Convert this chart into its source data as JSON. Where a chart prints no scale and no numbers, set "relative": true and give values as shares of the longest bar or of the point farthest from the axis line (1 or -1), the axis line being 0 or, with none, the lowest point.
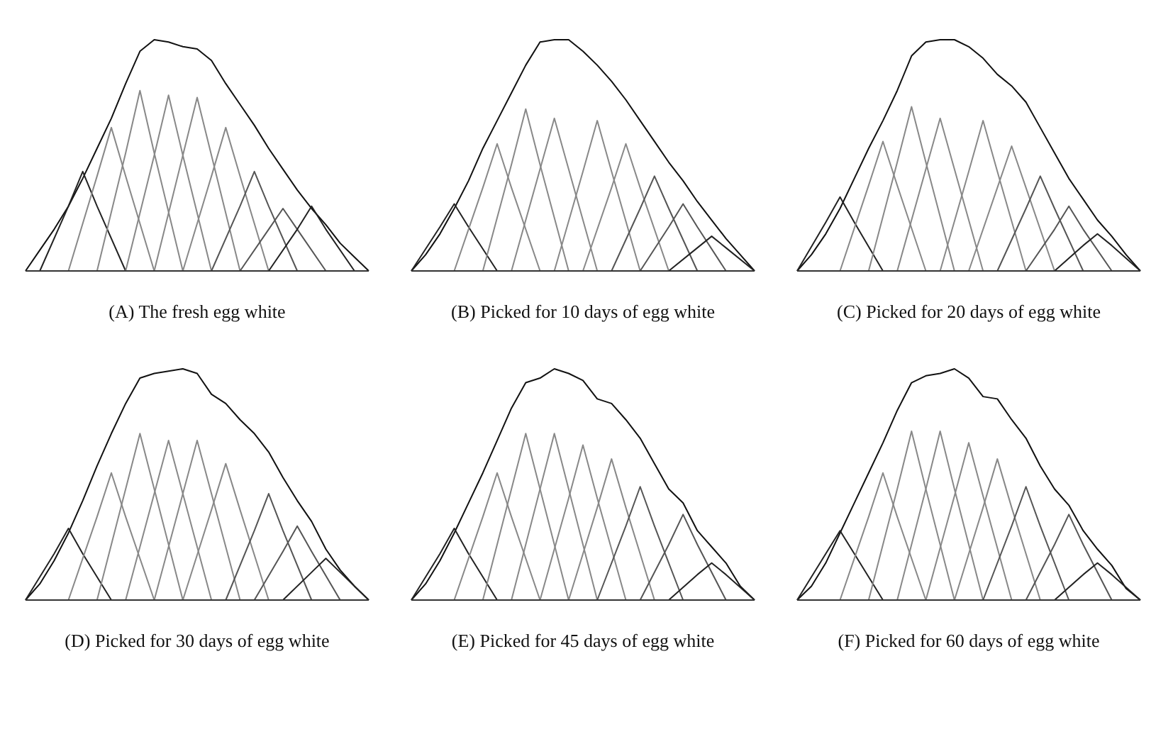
{
  "chart_data": [
    {
      "type": "line",
      "title": "(A) The fresh egg white",
      "relative": true,
      "marker": "none",
      "line_style": "solid",
      "legend": false,
      "categories": [
        null,
        null,
        null,
        null,
        null,
        null,
        null,
        null,
        null,
        null,
        null,
        null,
        null,
        null,
        null,
        null,
        null,
        null,
        null,
        null,
        null,
        null,
        null,
        null,
        null
      ],
      "series": [
        {
          "color": "#111111",
          "values": [
            0,
            0.09,
            0.18,
            0.28,
            0.4,
            0.53,
            0.66,
            0.81,
            0.95,
            1.0,
            0.99,
            0.97,
            0.96,
            0.91,
            0.81,
            0.72,
            0.63,
            0.53,
            0.44,
            0.35,
            0.27,
            0.2,
            0.12,
            0.06,
            0
          ]
        },
        {
          "color": "#222222",
          "values": [
            null,
            0,
            null,
            0.28,
            0.43,
            0.28,
            null,
            0,
            null,
            null,
            null,
            null,
            null,
            null,
            null,
            null,
            null,
            null,
            null,
            null,
            null,
            null,
            null,
            null,
            null
          ]
        },
        {
          "color": "#888888",
          "values": [
            null,
            null,
            null,
            0,
            null,
            0.41,
            0.62,
            0.41,
            null,
            0,
            null,
            null,
            null,
            null,
            null,
            null,
            null,
            null,
            null,
            null,
            null,
            null,
            null,
            null,
            null
          ]
        },
        {
          "color": "#888888",
          "values": [
            null,
            null,
            null,
            null,
            null,
            0,
            null,
            0.51,
            0.78,
            0.51,
            null,
            0,
            null,
            null,
            null,
            null,
            null,
            null,
            null,
            null,
            null,
            null,
            null,
            null,
            null
          ]
        },
        {
          "color": "#888888",
          "values": [
            null,
            null,
            null,
            null,
            null,
            null,
            null,
            0,
            null,
            0.5,
            0.76,
            0.5,
            null,
            0,
            null,
            null,
            null,
            null,
            null,
            null,
            null,
            null,
            null,
            null,
            null
          ]
        },
        {
          "color": "#888888",
          "values": [
            null,
            null,
            null,
            null,
            null,
            null,
            null,
            null,
            null,
            0,
            null,
            0.5,
            0.75,
            0.5,
            null,
            0,
            null,
            null,
            null,
            null,
            null,
            null,
            null,
            null,
            null
          ]
        },
        {
          "color": "#888888",
          "values": [
            null,
            null,
            null,
            null,
            null,
            null,
            null,
            null,
            null,
            null,
            null,
            0,
            null,
            0.41,
            0.62,
            0.41,
            null,
            0,
            null,
            null,
            null,
            null,
            null,
            null,
            null
          ]
        },
        {
          "color": "#555555",
          "values": [
            null,
            null,
            null,
            null,
            null,
            null,
            null,
            null,
            null,
            null,
            null,
            null,
            null,
            0,
            null,
            0.28,
            0.43,
            0.28,
            null,
            0,
            null,
            null,
            null,
            null,
            null
          ]
        },
        {
          "color": "#555555",
          "values": [
            null,
            null,
            null,
            null,
            null,
            null,
            null,
            null,
            null,
            null,
            null,
            null,
            null,
            null,
            null,
            0,
            null,
            0.18,
            0.27,
            0.18,
            null,
            0,
            null,
            null,
            null
          ]
        },
        {
          "color": "#222222",
          "values": [
            null,
            null,
            null,
            null,
            null,
            null,
            null,
            null,
            null,
            null,
            null,
            null,
            null,
            null,
            null,
            null,
            null,
            0,
            null,
            0.18,
            0.28,
            0.18,
            null,
            0,
            null
          ]
        }
      ]
    },
    {
      "type": "line",
      "title": "(B) Picked for 10 days of egg white",
      "relative": true,
      "marker": "none",
      "line_style": "solid",
      "legend": false,
      "categories": [
        null,
        null,
        null,
        null,
        null,
        null,
        null,
        null,
        null,
        null,
        null,
        null,
        null,
        null,
        null,
        null,
        null,
        null,
        null,
        null,
        null,
        null,
        null,
        null,
        null
      ],
      "series": [
        {
          "color": "#111111",
          "values": [
            0,
            0.07,
            0.16,
            0.27,
            0.39,
            0.53,
            0.65,
            0.77,
            0.89,
            0.99,
            1.0,
            1.0,
            0.95,
            0.89,
            0.82,
            0.74,
            0.65,
            0.56,
            0.47,
            0.39,
            0.3,
            0.22,
            0.14,
            0.07,
            0
          ]
        },
        {
          "color": "#222222",
          "values": [
            0,
            null,
            0.19,
            0.29,
            0.19,
            null,
            0,
            null,
            null,
            null,
            null,
            null,
            null,
            null,
            null,
            null,
            null,
            null,
            null,
            null,
            null,
            null,
            null,
            null,
            null
          ]
        },
        {
          "color": "#888888",
          "values": [
            null,
            null,
            null,
            0,
            null,
            0.36,
            0.55,
            0.36,
            null,
            0,
            null,
            null,
            null,
            null,
            null,
            null,
            null,
            null,
            null,
            null,
            null,
            null,
            null,
            null,
            null
          ]
        },
        {
          "color": "#888888",
          "values": [
            null,
            null,
            null,
            null,
            null,
            0,
            null,
            0.46,
            0.7,
            0.46,
            null,
            0,
            null,
            null,
            null,
            null,
            null,
            null,
            null,
            null,
            null,
            null,
            null,
            null,
            null
          ]
        },
        {
          "color": "#888888",
          "values": [
            null,
            null,
            null,
            null,
            null,
            null,
            null,
            0,
            null,
            0.44,
            0.66,
            0.44,
            null,
            0,
            null,
            null,
            null,
            null,
            null,
            null,
            null,
            null,
            null,
            null,
            null
          ]
        },
        {
          "color": "#888888",
          "values": [
            null,
            null,
            null,
            null,
            null,
            null,
            null,
            null,
            null,
            null,
            0,
            null,
            0.43,
            0.65,
            0.43,
            null,
            0,
            null,
            null,
            null,
            null,
            null,
            null,
            null,
            null
          ]
        },
        {
          "color": "#888888",
          "values": [
            null,
            null,
            null,
            null,
            null,
            null,
            null,
            null,
            null,
            null,
            null,
            null,
            0,
            null,
            0.36,
            0.55,
            0.36,
            null,
            0,
            null,
            null,
            null,
            null,
            null,
            null
          ]
        },
        {
          "color": "#555555",
          "values": [
            null,
            null,
            null,
            null,
            null,
            null,
            null,
            null,
            null,
            null,
            null,
            null,
            null,
            null,
            0,
            null,
            0.27,
            0.41,
            0.27,
            null,
            0,
            null,
            null,
            null,
            null
          ]
        },
        {
          "color": "#555555",
          "values": [
            null,
            null,
            null,
            null,
            null,
            null,
            null,
            null,
            null,
            null,
            null,
            null,
            null,
            null,
            null,
            null,
            0,
            null,
            0.19,
            0.29,
            0.19,
            null,
            0,
            null,
            null
          ]
        },
        {
          "color": "#222222",
          "values": [
            null,
            null,
            null,
            null,
            null,
            null,
            null,
            null,
            null,
            null,
            null,
            null,
            null,
            null,
            null,
            null,
            null,
            null,
            0,
            null,
            0.1,
            0.15,
            0.1,
            null,
            0
          ]
        }
      ]
    },
    {
      "type": "line",
      "title": "(C) Picked for 20 days of egg white",
      "relative": true,
      "marker": "none",
      "line_style": "solid",
      "legend": false,
      "categories": [
        null,
        null,
        null,
        null,
        null,
        null,
        null,
        null,
        null,
        null,
        null,
        null,
        null,
        null,
        null,
        null,
        null,
        null,
        null,
        null,
        null,
        null,
        null,
        null,
        null
      ],
      "series": [
        {
          "color": "#111111",
          "values": [
            0,
            0.07,
            0.16,
            0.27,
            0.4,
            0.53,
            0.65,
            0.78,
            0.93,
            0.99,
            1.0,
            1.0,
            0.97,
            0.92,
            0.85,
            0.8,
            0.73,
            0.62,
            0.51,
            0.4,
            0.31,
            0.22,
            0.15,
            0.07,
            0
          ]
        },
        {
          "color": "#222222",
          "values": [
            0,
            null,
            0.21,
            0.32,
            0.21,
            null,
            0,
            null,
            null,
            null,
            null,
            null,
            null,
            null,
            null,
            null,
            null,
            null,
            null,
            null,
            null,
            null,
            null,
            null,
            null
          ]
        },
        {
          "color": "#888888",
          "values": [
            null,
            null,
            null,
            0,
            null,
            0.37,
            0.56,
            0.37,
            null,
            0,
            null,
            null,
            null,
            null,
            null,
            null,
            null,
            null,
            null,
            null,
            null,
            null,
            null,
            null,
            null
          ]
        },
        {
          "color": "#888888",
          "values": [
            null,
            null,
            null,
            null,
            null,
            0,
            null,
            0.47,
            0.71,
            0.47,
            null,
            0,
            null,
            null,
            null,
            null,
            null,
            null,
            null,
            null,
            null,
            null,
            null,
            null,
            null
          ]
        },
        {
          "color": "#888888",
          "values": [
            null,
            null,
            null,
            null,
            null,
            null,
            null,
            0,
            null,
            0.44,
            0.66,
            0.44,
            null,
            0,
            null,
            null,
            null,
            null,
            null,
            null,
            null,
            null,
            null,
            null,
            null
          ]
        },
        {
          "color": "#888888",
          "values": [
            null,
            null,
            null,
            null,
            null,
            null,
            null,
            null,
            null,
            null,
            0,
            null,
            0.43,
            0.65,
            0.43,
            null,
            0,
            null,
            null,
            null,
            null,
            null,
            null,
            null,
            null
          ]
        },
        {
          "color": "#888888",
          "values": [
            null,
            null,
            null,
            null,
            null,
            null,
            null,
            null,
            null,
            null,
            null,
            null,
            0,
            null,
            0.36,
            0.54,
            0.36,
            null,
            0,
            null,
            null,
            null,
            null,
            null,
            null
          ]
        },
        {
          "color": "#555555",
          "values": [
            null,
            null,
            null,
            null,
            null,
            null,
            null,
            null,
            null,
            null,
            null,
            null,
            null,
            null,
            0,
            null,
            0.27,
            0.41,
            0.27,
            null,
            0,
            null,
            null,
            null,
            null
          ]
        },
        {
          "color": "#555555",
          "values": [
            null,
            null,
            null,
            null,
            null,
            null,
            null,
            null,
            null,
            null,
            null,
            null,
            null,
            null,
            null,
            null,
            0,
            null,
            0.18,
            0.28,
            0.18,
            null,
            0,
            null,
            null
          ]
        },
        {
          "color": "#222222",
          "values": [
            null,
            null,
            null,
            null,
            null,
            null,
            null,
            null,
            null,
            null,
            null,
            null,
            null,
            null,
            null,
            null,
            null,
            null,
            0,
            null,
            0.11,
            0.16,
            0.11,
            null,
            0
          ]
        }
      ]
    },
    {
      "type": "line",
      "title": "(D) Picked for 30 days of egg white",
      "relative": true,
      "marker": "none",
      "line_style": "solid",
      "legend": false,
      "categories": [
        null,
        null,
        null,
        null,
        null,
        null,
        null,
        null,
        null,
        null,
        null,
        null,
        null,
        null,
        null,
        null,
        null,
        null,
        null,
        null,
        null,
        null,
        null,
        null,
        null
      ],
      "series": [
        {
          "color": "#111111",
          "values": [
            0,
            0.07,
            0.17,
            0.29,
            0.43,
            0.58,
            0.72,
            0.85,
            0.96,
            0.98,
            0.99,
            1.0,
            0.98,
            0.89,
            0.85,
            0.78,
            0.72,
            0.64,
            0.53,
            0.43,
            0.34,
            0.22,
            0.13,
            0.06,
            0
          ]
        },
        {
          "color": "#222222",
          "values": [
            0,
            null,
            0.2,
            0.31,
            0.2,
            null,
            0,
            null,
            null,
            null,
            null,
            null,
            null,
            null,
            null,
            null,
            null,
            null,
            null,
            null,
            null,
            null,
            null,
            null,
            null
          ]
        },
        {
          "color": "#888888",
          "values": [
            null,
            null,
            null,
            0,
            null,
            0.36,
            0.55,
            0.36,
            null,
            0,
            null,
            null,
            null,
            null,
            null,
            null,
            null,
            null,
            null,
            null,
            null,
            null,
            null,
            null,
            null
          ]
        },
        {
          "color": "#888888",
          "values": [
            null,
            null,
            null,
            null,
            null,
            0,
            null,
            0.48,
            0.72,
            0.48,
            null,
            0,
            null,
            null,
            null,
            null,
            null,
            null,
            null,
            null,
            null,
            null,
            null,
            null,
            null
          ]
        },
        {
          "color": "#888888",
          "values": [
            null,
            null,
            null,
            null,
            null,
            null,
            null,
            0,
            null,
            0.46,
            0.69,
            0.46,
            null,
            0,
            null,
            null,
            null,
            null,
            null,
            null,
            null,
            null,
            null,
            null,
            null
          ]
        },
        {
          "color": "#888888",
          "values": [
            null,
            null,
            null,
            null,
            null,
            null,
            null,
            null,
            null,
            0,
            null,
            0.46,
            0.69,
            0.46,
            null,
            0,
            null,
            null,
            null,
            null,
            null,
            null,
            null,
            null,
            null
          ]
        },
        {
          "color": "#888888",
          "values": [
            null,
            null,
            null,
            null,
            null,
            null,
            null,
            null,
            null,
            null,
            null,
            0,
            null,
            0.39,
            0.59,
            0.39,
            null,
            0,
            null,
            null,
            null,
            null,
            null,
            null,
            null
          ]
        },
        {
          "color": "#555555",
          "values": [
            null,
            null,
            null,
            null,
            null,
            null,
            null,
            null,
            null,
            null,
            null,
            null,
            null,
            null,
            0,
            null,
            0.3,
            0.46,
            0.3,
            null,
            0,
            null,
            null,
            null,
            null
          ]
        },
        {
          "color": "#555555",
          "values": [
            null,
            null,
            null,
            null,
            null,
            null,
            null,
            null,
            null,
            null,
            null,
            null,
            null,
            null,
            null,
            null,
            0,
            null,
            0.21,
            0.32,
            0.21,
            null,
            0,
            null,
            null
          ]
        },
        {
          "color": "#222222",
          "values": [
            null,
            null,
            null,
            null,
            null,
            null,
            null,
            null,
            null,
            null,
            null,
            null,
            null,
            null,
            null,
            null,
            null,
            null,
            0,
            null,
            0.12,
            0.18,
            0.12,
            null,
            0
          ]
        }
      ]
    },
    {
      "type": "line",
      "title": "(E) Picked for 45 days of egg white",
      "relative": true,
      "marker": "none",
      "line_style": "solid",
      "legend": false,
      "categories": [
        null,
        null,
        null,
        null,
        null,
        null,
        null,
        null,
        null,
        null,
        null,
        null,
        null,
        null,
        null,
        null,
        null,
        null,
        null,
        null,
        null,
        null,
        null,
        null,
        null
      ],
      "series": [
        {
          "color": "#111111",
          "values": [
            0,
            0.07,
            0.17,
            0.29,
            0.42,
            0.55,
            0.69,
            0.83,
            0.94,
            0.96,
            1.0,
            0.98,
            0.95,
            0.87,
            0.85,
            0.78,
            0.7,
            0.59,
            0.48,
            0.42,
            0.3,
            0.23,
            0.16,
            0.06,
            0
          ]
        },
        {
          "color": "#222222",
          "values": [
            0,
            null,
            0.2,
            0.31,
            0.2,
            null,
            0,
            null,
            null,
            null,
            null,
            null,
            null,
            null,
            null,
            null,
            null,
            null,
            null,
            null,
            null,
            null,
            null,
            null,
            null
          ]
        },
        {
          "color": "#888888",
          "values": [
            null,
            null,
            null,
            0,
            null,
            0.36,
            0.55,
            0.36,
            null,
            0,
            null,
            null,
            null,
            null,
            null,
            null,
            null,
            null,
            null,
            null,
            null,
            null,
            null,
            null,
            null
          ]
        },
        {
          "color": "#888888",
          "values": [
            null,
            null,
            null,
            null,
            null,
            0,
            null,
            0.48,
            0.72,
            0.48,
            null,
            0,
            null,
            null,
            null,
            null,
            null,
            null,
            null,
            null,
            null,
            null,
            null,
            null,
            null
          ]
        },
        {
          "color": "#888888",
          "values": [
            null,
            null,
            null,
            null,
            null,
            null,
            null,
            0,
            null,
            0.48,
            0.72,
            0.48,
            null,
            0,
            null,
            null,
            null,
            null,
            null,
            null,
            null,
            null,
            null,
            null,
            null
          ]
        },
        {
          "color": "#888888",
          "values": [
            null,
            null,
            null,
            null,
            null,
            null,
            null,
            null,
            null,
            0,
            null,
            0.44,
            0.67,
            0.44,
            null,
            0,
            null,
            null,
            null,
            null,
            null,
            null,
            null,
            null,
            null
          ]
        },
        {
          "color": "#888888",
          "values": [
            null,
            null,
            null,
            null,
            null,
            null,
            null,
            null,
            null,
            null,
            null,
            0,
            null,
            0.4,
            0.61,
            0.4,
            null,
            0,
            null,
            null,
            null,
            null,
            null,
            null,
            null
          ]
        },
        {
          "color": "#555555",
          "values": [
            null,
            null,
            null,
            null,
            null,
            null,
            null,
            null,
            null,
            null,
            null,
            null,
            null,
            0,
            null,
            0.32,
            0.49,
            0.32,
            null,
            0,
            null,
            null,
            null,
            null,
            null
          ]
        },
        {
          "color": "#555555",
          "values": [
            null,
            null,
            null,
            null,
            null,
            null,
            null,
            null,
            null,
            null,
            null,
            null,
            null,
            null,
            null,
            null,
            0,
            null,
            0.24,
            0.37,
            0.24,
            null,
            0,
            null,
            null
          ]
        },
        {
          "color": "#222222",
          "values": [
            null,
            null,
            null,
            null,
            null,
            null,
            null,
            null,
            null,
            null,
            null,
            null,
            null,
            null,
            null,
            null,
            null,
            null,
            0,
            null,
            0.11,
            0.16,
            0.11,
            null,
            0
          ]
        }
      ]
    },
    {
      "type": "line",
      "title": "(F) Picked for 60 days of egg white",
      "relative": true,
      "marker": "none",
      "line_style": "solid",
      "legend": false,
      "categories": [
        null,
        null,
        null,
        null,
        null,
        null,
        null,
        null,
        null,
        null,
        null,
        null,
        null,
        null,
        null,
        null,
        null,
        null,
        null,
        null,
        null,
        null,
        null,
        null,
        null
      ],
      "series": [
        {
          "color": "#111111",
          "values": [
            0,
            0.06,
            0.16,
            0.29,
            0.42,
            0.55,
            0.68,
            0.82,
            0.94,
            0.97,
            0.98,
            1.0,
            0.96,
            0.88,
            0.87,
            0.78,
            0.7,
            0.58,
            0.48,
            0.41,
            0.3,
            0.22,
            0.15,
            0.05,
            0
          ]
        },
        {
          "color": "#222222",
          "values": [
            0,
            null,
            0.2,
            0.3,
            0.2,
            null,
            0,
            null,
            null,
            null,
            null,
            null,
            null,
            null,
            null,
            null,
            null,
            null,
            null,
            null,
            null,
            null,
            null,
            null,
            null
          ]
        },
        {
          "color": "#888888",
          "values": [
            null,
            null,
            null,
            0,
            null,
            0.36,
            0.55,
            0.36,
            null,
            0,
            null,
            null,
            null,
            null,
            null,
            null,
            null,
            null,
            null,
            null,
            null,
            null,
            null,
            null,
            null
          ]
        },
        {
          "color": "#888888",
          "values": [
            null,
            null,
            null,
            null,
            null,
            0,
            null,
            0.48,
            0.73,
            0.48,
            null,
            0,
            null,
            null,
            null,
            null,
            null,
            null,
            null,
            null,
            null,
            null,
            null,
            null,
            null
          ]
        },
        {
          "color": "#888888",
          "values": [
            null,
            null,
            null,
            null,
            null,
            null,
            null,
            0,
            null,
            0.48,
            0.73,
            0.48,
            null,
            0,
            null,
            null,
            null,
            null,
            null,
            null,
            null,
            null,
            null,
            null,
            null
          ]
        },
        {
          "color": "#888888",
          "values": [
            null,
            null,
            null,
            null,
            null,
            null,
            null,
            null,
            null,
            0,
            null,
            0.45,
            0.68,
            0.45,
            null,
            0,
            null,
            null,
            null,
            null,
            null,
            null,
            null,
            null,
            null
          ]
        },
        {
          "color": "#888888",
          "values": [
            null,
            null,
            null,
            null,
            null,
            null,
            null,
            null,
            null,
            null,
            null,
            0,
            null,
            0.4,
            0.61,
            0.4,
            null,
            0,
            null,
            null,
            null,
            null,
            null,
            null,
            null
          ]
        },
        {
          "color": "#555555",
          "values": [
            null,
            null,
            null,
            null,
            null,
            null,
            null,
            null,
            null,
            null,
            null,
            null,
            null,
            0,
            null,
            0.32,
            0.49,
            0.32,
            null,
            0,
            null,
            null,
            null,
            null,
            null
          ]
        },
        {
          "color": "#555555",
          "values": [
            null,
            null,
            null,
            null,
            null,
            null,
            null,
            null,
            null,
            null,
            null,
            null,
            null,
            null,
            null,
            null,
            0,
            null,
            0.24,
            0.37,
            0.24,
            null,
            0,
            null,
            null
          ]
        },
        {
          "color": "#222222",
          "values": [
            null,
            null,
            null,
            null,
            null,
            null,
            null,
            null,
            null,
            null,
            null,
            null,
            null,
            null,
            null,
            null,
            null,
            null,
            0,
            null,
            0.11,
            0.16,
            0.11,
            null,
            0
          ]
        }
      ]
    }
  ]
}
